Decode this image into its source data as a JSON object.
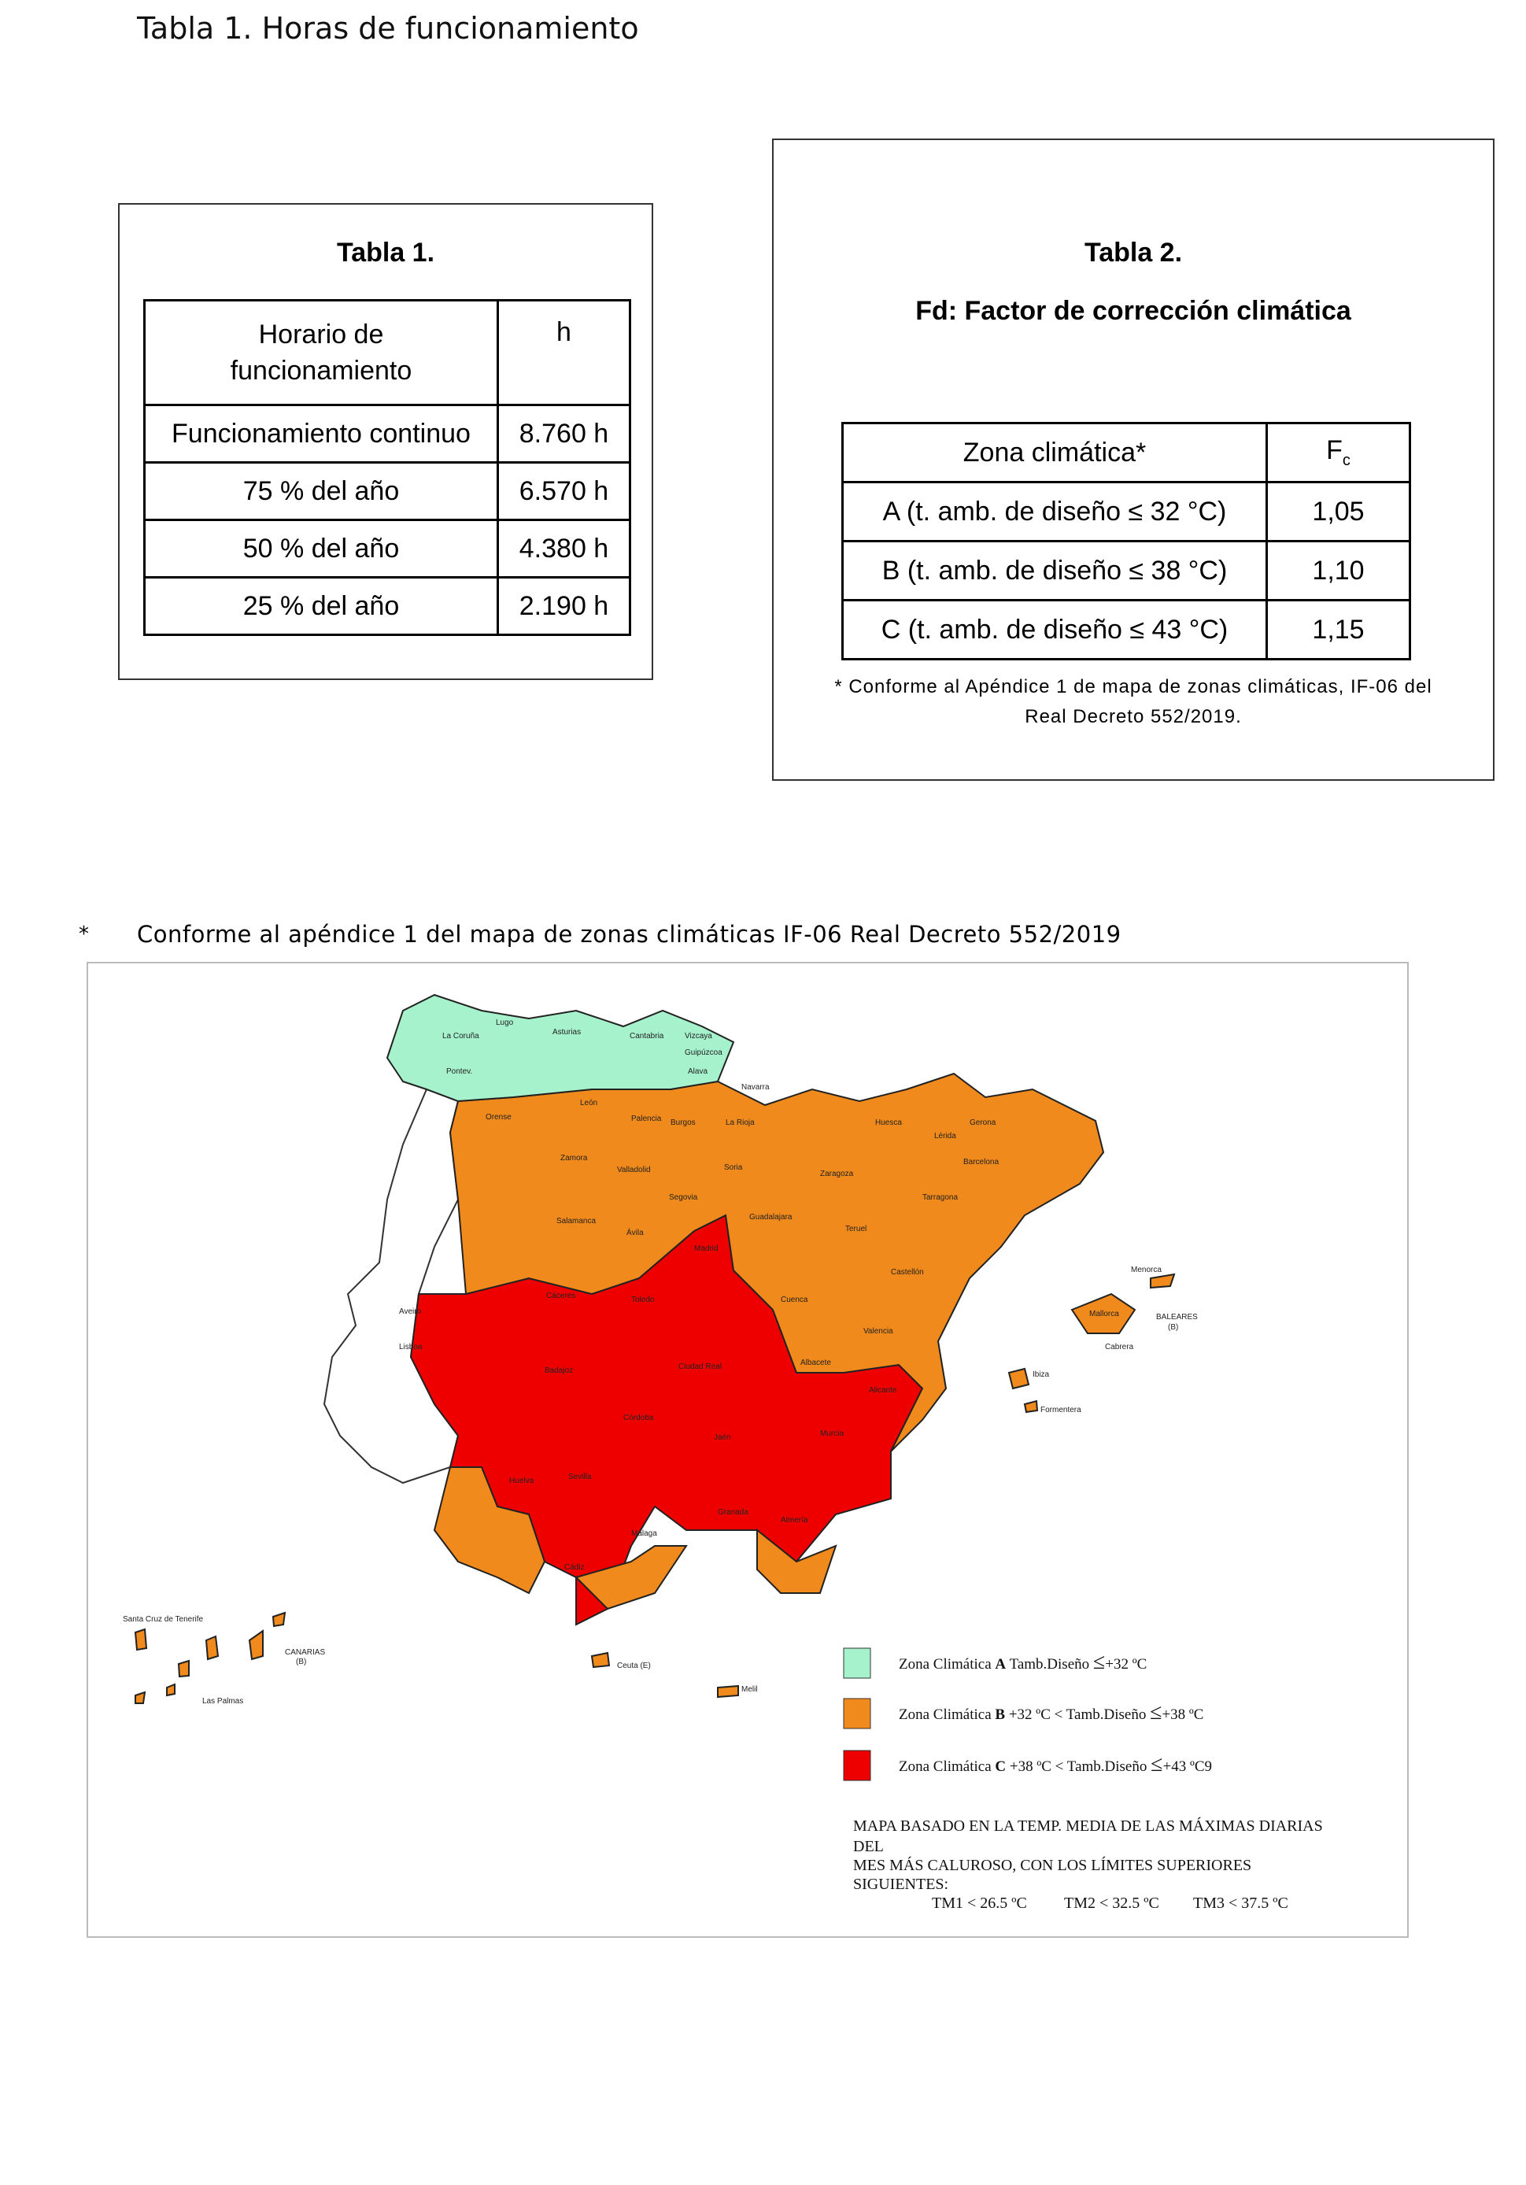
{
  "doc_title": "Tabla 1. Horas de funcionamiento",
  "table1": {
    "title": "Tabla 1.",
    "header_col1_line1": "Horario de",
    "header_col1_line2": "funcionamiento",
    "header_col2": "h",
    "rows": [
      {
        "label": "Funcionamiento continuo",
        "value": "8.760 h"
      },
      {
        "label": "75 % del año",
        "value": "6.570 h"
      },
      {
        "label": "50 % del año",
        "value": "4.380 h"
      },
      {
        "label": "25 % del año",
        "value": "2.190 h"
      }
    ]
  },
  "table2": {
    "title": "Tabla 2.",
    "subtitle": "Fd: Factor de corrección climática",
    "header_col1": "Zona climática*",
    "header_col2": "F",
    "header_col2_sub": "c",
    "rows": [
      {
        "label": "A (t. amb. de diseño ≤ 32 °C)",
        "value": "1,05"
      },
      {
        "label": "B (t. amb. de diseño ≤ 38 °C)",
        "value": "1,10"
      },
      {
        "label": "C (t. amb. de diseño ≤ 43 °C)",
        "value": "1,15"
      }
    ],
    "note_line1": "* Conforme al Apéndice 1 de mapa de zonas climáticas, IF-06 del",
    "note_line2": "Real Decreto 552/2019."
  },
  "map_section": {
    "asterisk": "*",
    "caption": "Conforme al apéndice 1 del mapa de zonas climáticas IF-06 Real Decreto 552/2019"
  },
  "map": {
    "colors": {
      "zone_a": "#a6f2cc",
      "zone_b": "#f08a1c",
      "zone_c": "#ee0000",
      "portugal": "#ffffff"
    },
    "provinces": {
      "lugo": "Lugo",
      "la_coruna": "La Coruña",
      "pontev": "Pontev.",
      "asturias": "Asturias",
      "cantabria": "Cantabria",
      "vizcaya": "Vizcaya",
      "guipuzcoa": "Guipúzcoa",
      "alava": "Alava",
      "navarra": "Navarra",
      "leon": "León",
      "orense": "Orense",
      "palencia": "Palencia",
      "burgos": "Burgos",
      "la_rioja": "La Rioja",
      "huesca": "Huesca",
      "gerona": "Gerona",
      "lerida": "Lérida",
      "barcelona": "Barcelona",
      "zamora": "Zamora",
      "valladolid": "Valladolid",
      "soria": "Soria",
      "zaragoza": "Zaragoza",
      "tarragona": "Tarragona",
      "segovia": "Segovia",
      "salamanca": "Salamanca",
      "avila": "Ávila",
      "madrid": "Madrid",
      "guadalajara": "Guadalajara",
      "teruel": "Teruel",
      "castellon": "Castellón",
      "caceres": "Cáceres",
      "toledo": "Toledo",
      "cuenca": "Cuenca",
      "valencia": "Valencia",
      "badajoz": "Badajoz",
      "ciudad_real": "Ciudad Real",
      "albacete": "Albacete",
      "alicante": "Alicante",
      "cordoba": "Córdoba",
      "jaen": "Jaén",
      "murcia": "Murcia",
      "huelva": "Huelva",
      "sevilla": "Sevilla",
      "granada": "Granada",
      "almeria": "Almería",
      "malaga": "Málaga",
      "cadiz": "Cádiz",
      "ceuta": "Ceuta (E)",
      "melilla": "Melil",
      "aveiro": "Aveiro",
      "lisboa": "Lisboa",
      "menorca": "Menorca",
      "mallorca": "Mallorca",
      "baleares": "BALEARES",
      "baleares_sub": "(B)",
      "cabrera": "Cabrera",
      "ibiza": "Ibiza",
      "formentera": "Formentera",
      "santa_cruz": "Santa Cruz de Tenerife",
      "canarias": "CANARIAS",
      "canarias_sub": "(B)",
      "las_palmas": "Las Palmas"
    },
    "legend": [
      {
        "zone": "A",
        "prefix": "Zona Climática",
        "letter": "A",
        "text": "Tamb.Diseño",
        "sym": "≤",
        "limit": "+32 ºC"
      },
      {
        "zone": "B",
        "prefix": "Zona Climática",
        "letter": "B",
        "text": "+32 ºC < Tamb.Diseño",
        "sym": "≤",
        "limit": "+38 ºC"
      },
      {
        "zone": "C",
        "prefix": "Zona Climática",
        "letter": "C",
        "text": "+38 ºC < Tamb.Diseño",
        "sym": "≤",
        "limit": "+43 ºC9"
      }
    ],
    "note_lines": [
      "MAPA BASADO EN LA TEMP. MEDIA DE LAS MÁXIMAS DIARIAS",
      "DEL",
      "MES MÁS CALUROSO, CON LOS LÍMITES SUPERIORES",
      "SIGUIENTES:"
    ],
    "tm": [
      "TM1 < 26.5 ºC",
      "TM2 < 32.5 ºC",
      "TM3 < 37.5 ºC"
    ]
  }
}
